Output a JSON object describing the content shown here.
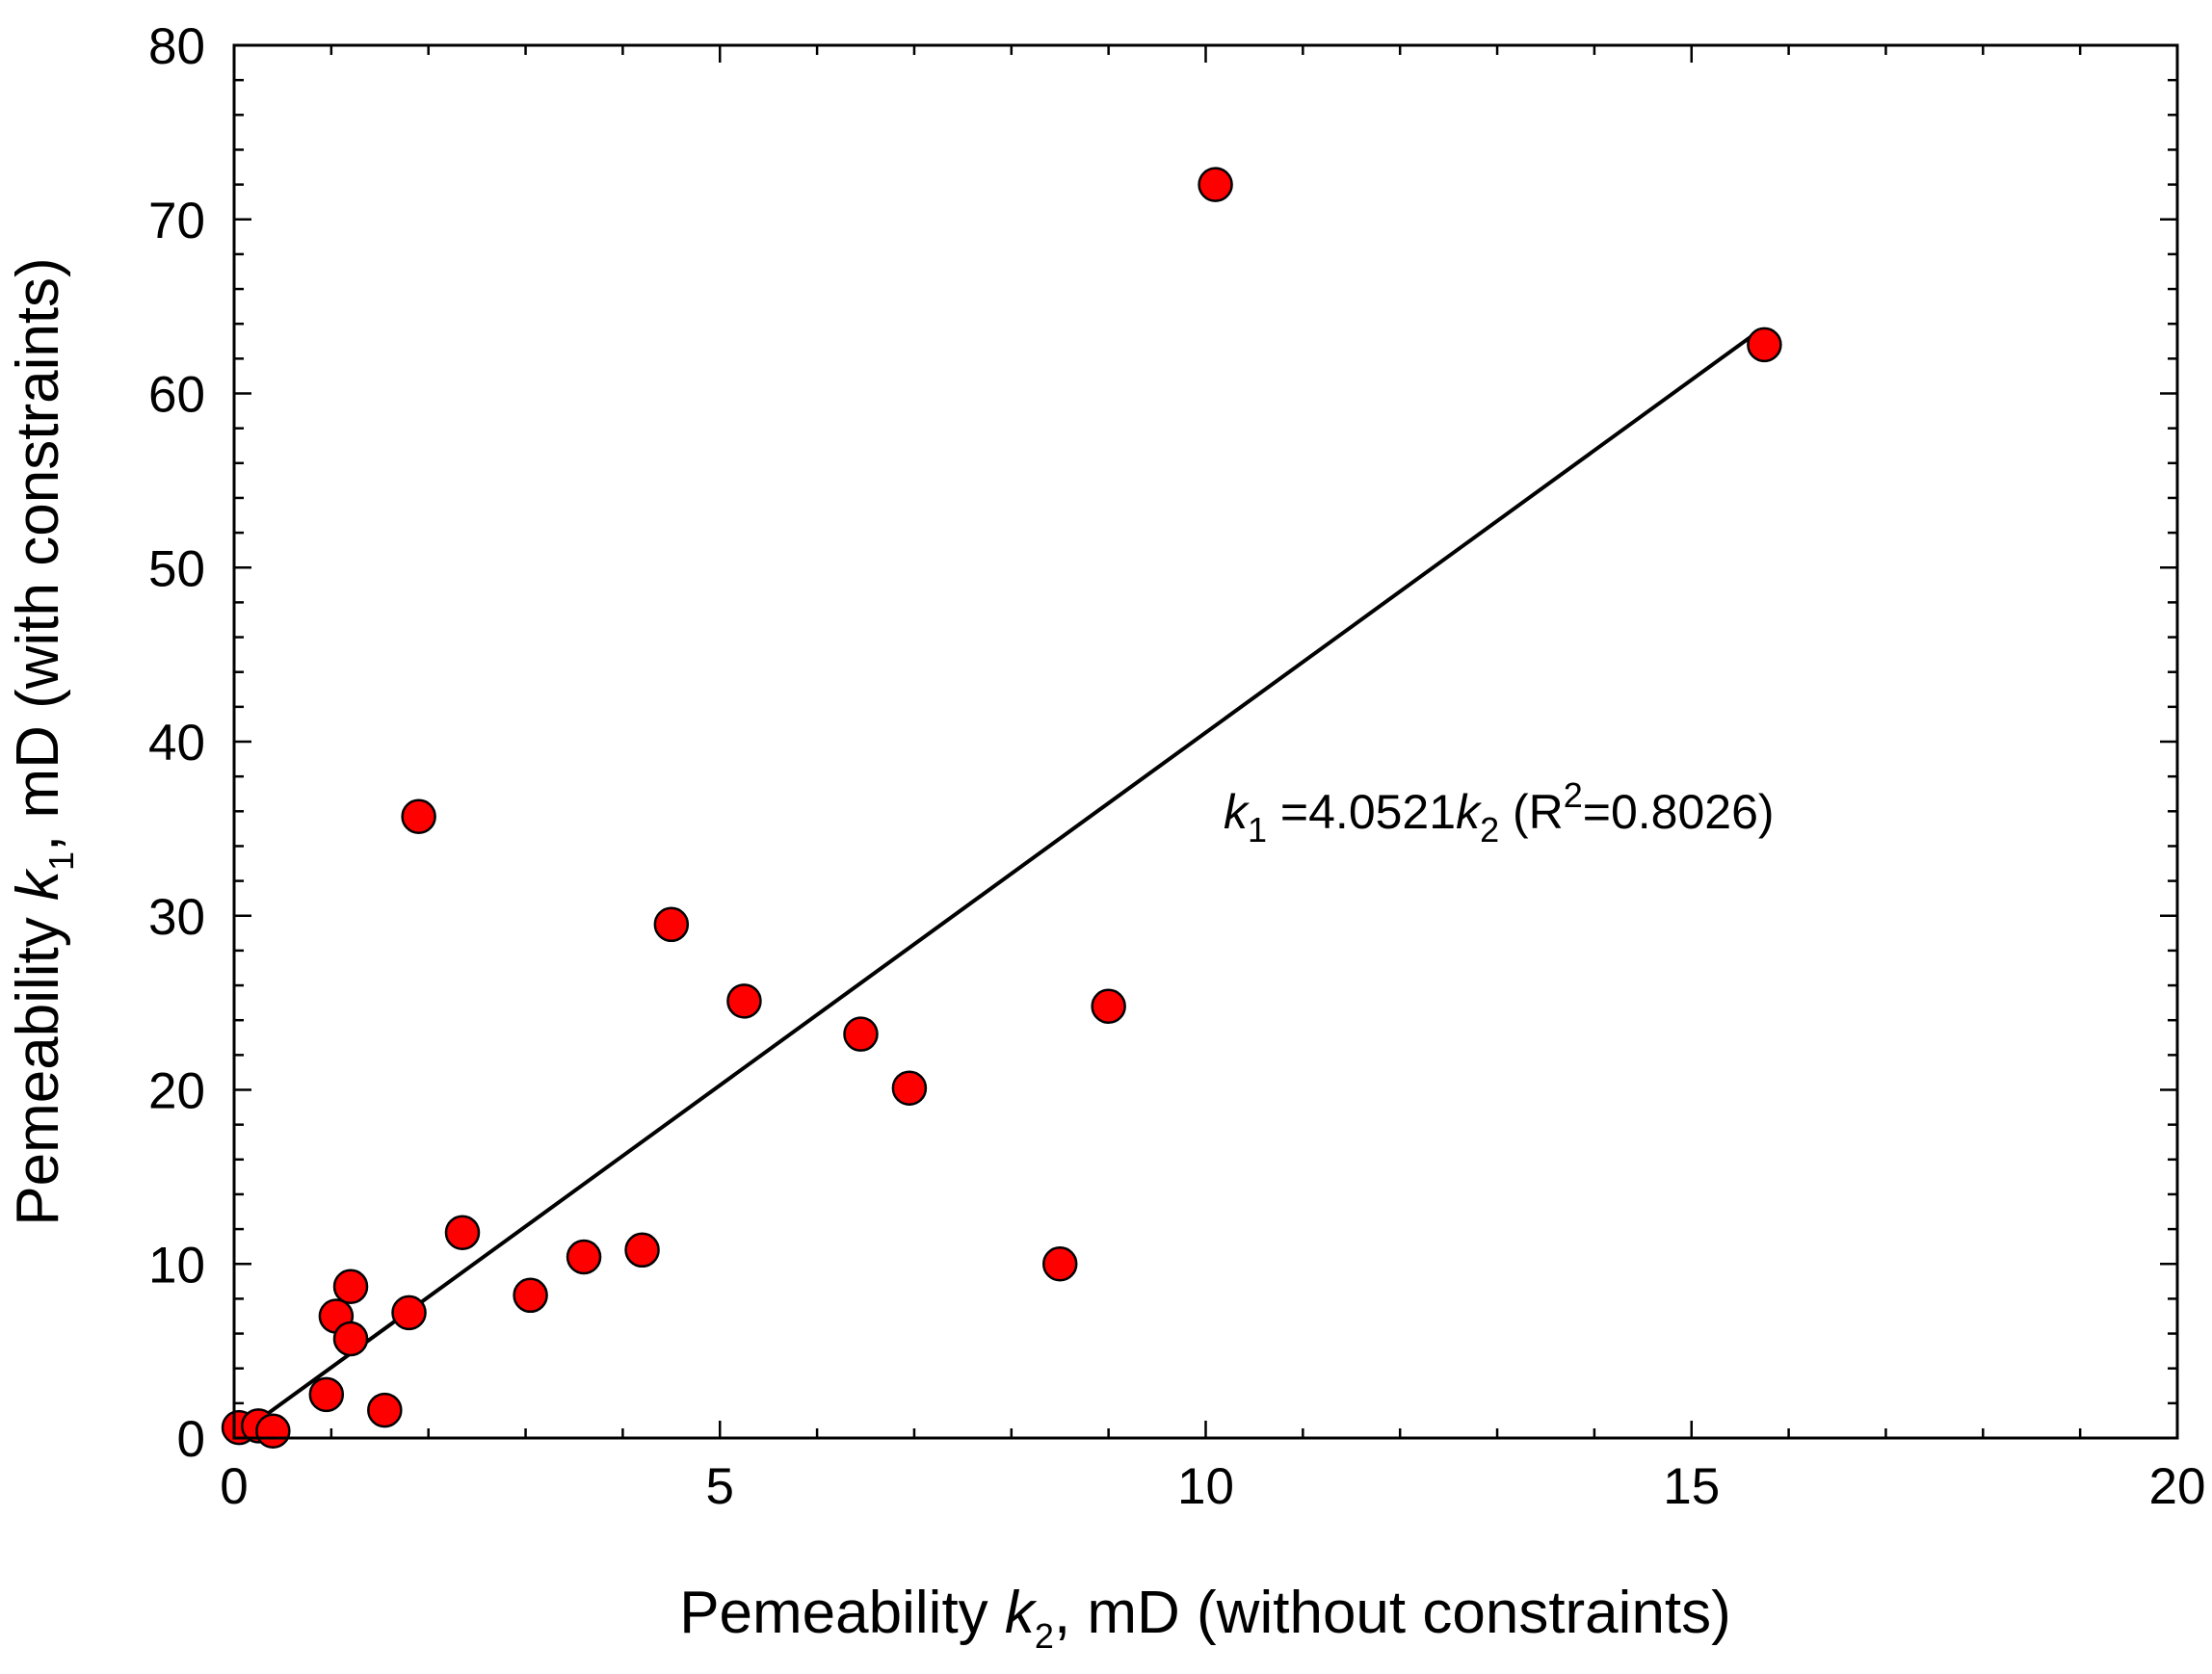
{
  "chart_data": {
    "type": "scatter",
    "title": "",
    "xlabel": {
      "prefix": "Pemeability ",
      "var": "k",
      "sub": "2",
      "suffix": ", mD (without constraints)"
    },
    "ylabel": {
      "prefix": "Pemeability ",
      "var": "k",
      "sub": "1",
      "suffix": ", mD (with constraints)"
    },
    "xlim": [
      0,
      20
    ],
    "ylim": [
      0,
      80
    ],
    "x_ticks": [
      "0",
      "5",
      "10",
      "15",
      "20"
    ],
    "y_ticks": [
      "0",
      "10",
      "20",
      "30",
      "40",
      "50",
      "60",
      "70",
      "80"
    ],
    "x_major_step": 5,
    "x_minor_step": 1,
    "y_major_step": 10,
    "y_minor_step": 2,
    "grid": false,
    "marker_color": "#ff0000",
    "marker_edge_color": "#000000",
    "line_color": "#000000",
    "series": [
      {
        "name": "data",
        "x": [
          0.05,
          0.25,
          0.4,
          0.95,
          1.05,
          1.2,
          1.2,
          1.55,
          1.8,
          1.9,
          2.35,
          3.05,
          3.6,
          4.2,
          4.5,
          5.25,
          6.45,
          6.95,
          8.5,
          9.0,
          10.1,
          15.75
        ],
        "y": [
          0.6,
          0.7,
          0.4,
          2.5,
          7.0,
          8.7,
          5.7,
          1.6,
          7.2,
          35.7,
          11.8,
          8.2,
          10.4,
          10.8,
          29.5,
          25.1,
          23.2,
          20.1,
          10.0,
          24.8,
          72.0,
          62.8
        ]
      }
    ],
    "fit_line": {
      "slope": 4.0521,
      "x_range": [
        0.1,
        15.7
      ]
    },
    "annotation": {
      "var1": "k",
      "sub1": "1",
      "eq": " =4.0521",
      "var2": "k",
      "sub2": "2",
      "r_open": " (R",
      "r_sup": "2",
      "r_close": "=0.8026)"
    }
  }
}
